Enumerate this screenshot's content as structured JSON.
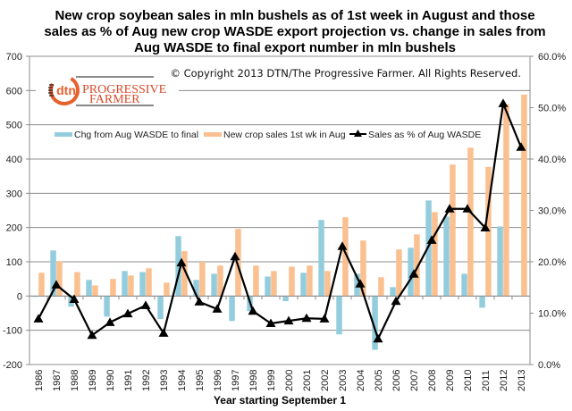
{
  "chart_data": {
    "type": "bar",
    "title": "New crop soybean sales in mln bushels as of 1st week in August and those sales as % of Aug new crop WASDE export projection vs. change in sales from Aug WASDE to final export number in mln bushels",
    "title_lines": [
      "New crop soybean sales in mln bushels as of 1st week in August and those",
      "sales as %  of Aug new crop WASDE  export projection vs. change in sales from",
      "Aug WASDE  to final export number in mln bushels"
    ],
    "xlabel": "Year starting September 1",
    "ylabel": "",
    "ylabel_right": "",
    "ylim": [
      -200,
      700
    ],
    "yticks": [
      -200,
      -100,
      0,
      100,
      200,
      300,
      400,
      500,
      600,
      700
    ],
    "ylim_right": [
      0,
      60
    ],
    "yticks_right": [
      "0.0%",
      "10.0%",
      "20.0%",
      "30.0%",
      "40.0%",
      "50.0%",
      "60.0%"
    ],
    "grid": true,
    "legend_position": "upper-left, inside plot",
    "categories": [
      "1986",
      "1987",
      "1988",
      "1989",
      "1990",
      "1991",
      "1992",
      "1993",
      "1994",
      "1995",
      "1996",
      "1997",
      "1998",
      "1999",
      "2000",
      "2001",
      "2002",
      "2003",
      "2004",
      "2005",
      "2006",
      "2007",
      "2008",
      "2009",
      "2010",
      "2011",
      "2012",
      "2013"
    ],
    "series": [
      {
        "name": "Chg from Aug WASDE to final",
        "type": "bar",
        "axis": "left",
        "color": "#93cddd",
        "values": [
          -2,
          133,
          -31,
          47,
          -60,
          73,
          70,
          -67,
          175,
          47,
          65,
          -73,
          -44,
          57,
          -15,
          68,
          222,
          -112,
          65,
          -157,
          26,
          141,
          279,
          232,
          65,
          -34,
          203,
          0
        ]
      },
      {
        "name": "New crop sales 1st wk in Aug",
        "type": "bar",
        "axis": "left",
        "color": "#fac090",
        "values": [
          68,
          102,
          70,
          31,
          50,
          60,
          81,
          39,
          131,
          100,
          89,
          196,
          89,
          73,
          86,
          89,
          73,
          230,
          162,
          55,
          136,
          180,
          245,
          384,
          433,
          377,
          560,
          588
        ]
      },
      {
        "name": "Sales as % of Aug WASDE",
        "type": "line",
        "axis": "right",
        "color": "#000000",
        "marker": "triangle",
        "unit": "%",
        "values": [
          8.9,
          15.5,
          12.7,
          5.7,
          8.2,
          9.9,
          11.5,
          6.1,
          19.8,
          12.2,
          10.8,
          21.0,
          10.4,
          8.0,
          8.5,
          9.0,
          8.9,
          23.0,
          15.7,
          5.0,
          12.3,
          17.6,
          24.2,
          30.3,
          30.3,
          26.6,
          50.8,
          42.3
        ]
      }
    ],
    "annotations": {
      "copyright": "© Copyright 2013 DTN/The Progressive Farmer. All Rights Reserved.",
      "logo_dtn": "dtn",
      "logo_pf_line1": "PROGRESSIVE",
      "logo_pf_line2": "FARMER",
      "logo_pf_the": "The"
    }
  },
  "colors": {
    "grid": "#8c8c8c",
    "axis": "#8c8c8c",
    "logo_orange": "#e8602c"
  }
}
